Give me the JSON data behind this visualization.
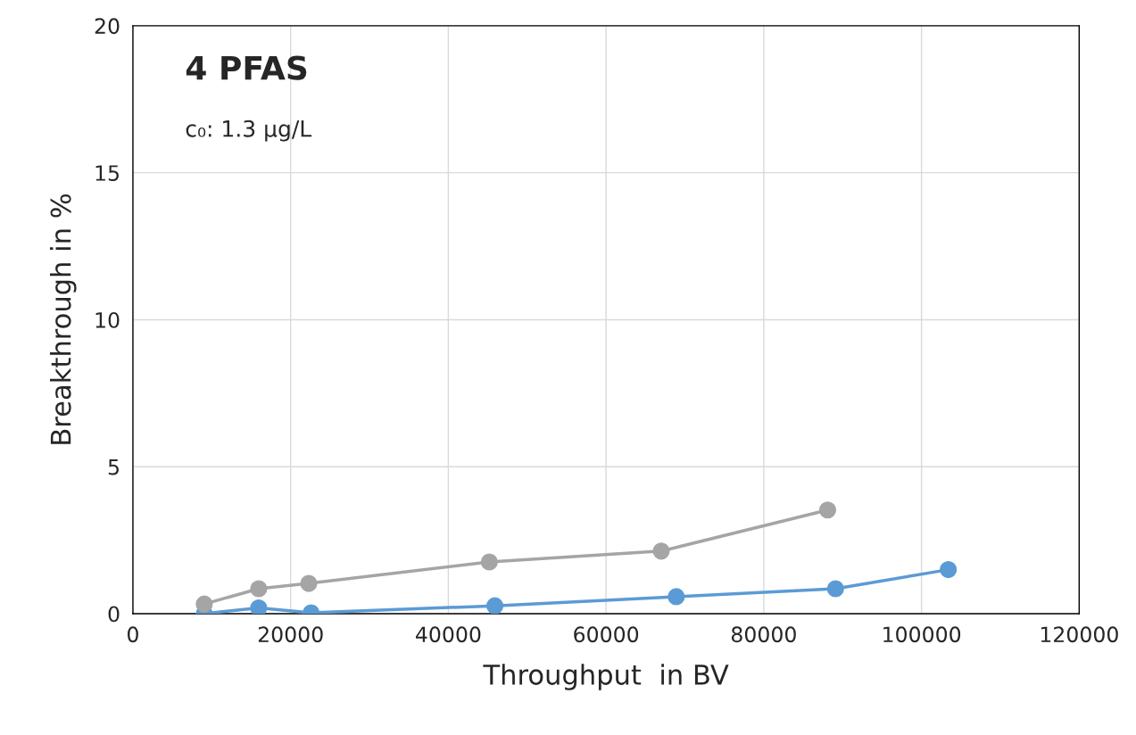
{
  "chart_data": {
    "type": "line",
    "title": "4 PFAS",
    "subtitle": "c₀: 1.3 µg/L",
    "xlabel": "Throughput  in BV",
    "ylabel": "Breakthrough in %",
    "xlim": [
      0,
      120000
    ],
    "xticks": [
      0,
      20000,
      40000,
      60000,
      80000,
      100000,
      120000
    ],
    "ylim": [
      0,
      20
    ],
    "yticks": [
      0,
      5,
      10,
      15,
      20
    ],
    "grid": true,
    "marker": "circle",
    "line_style": "solid",
    "series": [
      {
        "color": "#5b9bd5",
        "x": [
          9050,
          15950,
          22600,
          45900,
          68900,
          89100,
          103400
        ],
        "values": [
          0.0,
          0.2,
          0.03,
          0.27,
          0.58,
          0.85,
          1.5
        ]
      },
      {
        "color": "#a5a5a5",
        "x": [
          9050,
          15950,
          22300,
          45200,
          67000,
          88100
        ],
        "values": [
          0.33,
          0.85,
          1.03,
          1.76,
          2.13,
          3.53
        ]
      }
    ]
  }
}
